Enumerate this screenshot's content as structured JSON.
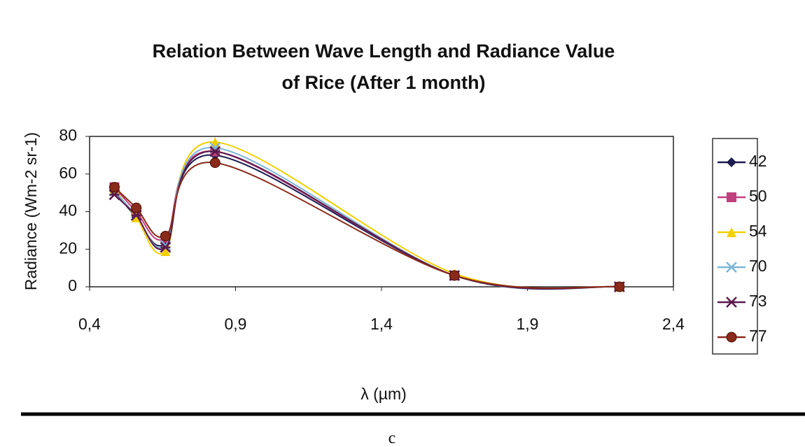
{
  "chart_data": {
    "type": "line",
    "title": [
      "Relation Between Wave Length and Radiance Value",
      "of Rice (After 1 month)"
    ],
    "xlabel": "λ (µm)",
    "ylabel": "Radiance (Wm-2 sr-1)",
    "x": [
      0.485,
      0.56,
      0.66,
      0.83,
      1.65,
      2.215
    ],
    "series": [
      {
        "name": "42",
        "color": "#1c1c50",
        "marker": "diamond",
        "values": [
          51,
          37,
          23,
          70,
          6,
          0
        ]
      },
      {
        "name": "50",
        "color": "#c0407e",
        "marker": "square",
        "values": [
          53,
          40,
          26,
          72,
          6,
          0
        ]
      },
      {
        "name": "54",
        "color": "#f2cf00",
        "marker": "triangle",
        "values": [
          52,
          37,
          19,
          77,
          7,
          0
        ]
      },
      {
        "name": "70",
        "color": "#7db6d6",
        "marker": "x",
        "values": [
          51,
          38,
          22,
          74,
          6,
          0
        ]
      },
      {
        "name": "73",
        "color": "#5a1a4c",
        "marker": "star",
        "values": [
          49,
          38,
          21,
          72,
          6,
          0
        ]
      },
      {
        "name": "77",
        "color": "#8a2a1a",
        "marker": "circle",
        "values": [
          53,
          42,
          27,
          66,
          6,
          0
        ]
      }
    ],
    "xlim": [
      0.4,
      2.4
    ],
    "xticks": [
      {
        "value": 0.4,
        "label": "0,4"
      },
      {
        "value": 0.9,
        "label": "0,9"
      },
      {
        "value": 1.4,
        "label": "1,4"
      },
      {
        "value": 1.9,
        "label": "1,9"
      },
      {
        "value": 2.4,
        "label": "2,4"
      }
    ],
    "ylim": [
      0,
      80
    ],
    "yticks": [
      0,
      20,
      40,
      60,
      80
    ],
    "grid": false,
    "smooth": true,
    "legend": "right"
  },
  "caption": "c"
}
